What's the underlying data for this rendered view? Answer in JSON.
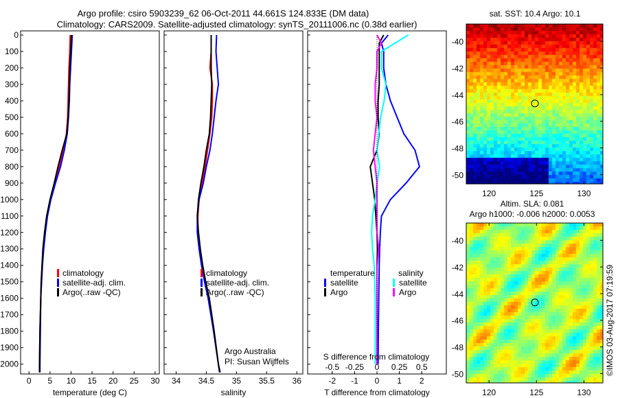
{
  "title_line1": "Argo profile: csiro 5903239_62 06-Oct-2011 44.661S 124.833E (DM data)",
  "title_line2": "Climatology: CARS2009. Satellite-adjusted climatology: synTS_20111006.nc (0.38d earlier)",
  "credit": "Argo Australia",
  "pi": "PI: Susan Wijffels",
  "imos_stamp": "©IMOS 03-Aug-2017 07:19:59",
  "colors": {
    "climatology": "#ff0000",
    "satellite": "#0000ff",
    "argo": "#000000",
    "sal_satellite": "#00ffff",
    "sal_argo": "#ff00ff"
  },
  "chart_data": [
    {
      "type": "line",
      "xlabel": "temperature (deg C)",
      "xlim": [
        -2,
        31
      ],
      "ylim": [
        0,
        2060
      ],
      "yticks": [
        0,
        100,
        200,
        300,
        400,
        500,
        600,
        700,
        800,
        900,
        1000,
        1100,
        1200,
        1300,
        1400,
        1500,
        1600,
        1700,
        1800,
        1900,
        2000
      ],
      "xticks": [
        0,
        5,
        10,
        15,
        20,
        25,
        30
      ],
      "legend": [
        "climatology",
        "satellite-adj. clim.",
        "Argo(..raw -QC)"
      ],
      "depth": [
        0,
        100,
        200,
        300,
        400,
        500,
        600,
        700,
        800,
        900,
        1000,
        1100,
        1200,
        1300,
        1400,
        1500,
        1600,
        1800,
        2000,
        2050
      ],
      "series": [
        {
          "name": "climatology",
          "values": [
            9.8,
            9.7,
            9.5,
            9.4,
            9.3,
            9.2,
            8.9,
            8.2,
            7.2,
            6.1,
            5.1,
            4.3,
            3.8,
            3.4,
            3.1,
            2.9,
            2.8,
            2.6,
            2.5,
            2.5
          ]
        },
        {
          "name": "satellite-adj. clim.",
          "values": [
            10.3,
            10.1,
            9.9,
            9.7,
            9.6,
            9.4,
            9.1,
            8.4,
            7.5,
            6.3,
            5.2,
            4.4,
            3.9,
            3.5,
            3.2,
            3.0,
            2.8,
            2.7,
            2.6,
            2.6
          ]
        },
        {
          "name": "Argo(..raw -QC)",
          "values": [
            10.1,
            9.9,
            9.7,
            9.6,
            9.5,
            9.3,
            9.0,
            7.9,
            6.9,
            6.0,
            5.0,
            4.2,
            3.7,
            3.3,
            3.1,
            2.9,
            2.8,
            2.6,
            2.5,
            2.5
          ]
        }
      ]
    },
    {
      "type": "line",
      "xlabel": "salinity",
      "xlim": [
        33.8,
        36.1
      ],
      "ylim": [
        0,
        2060
      ],
      "xticks": [
        34,
        34.5,
        35,
        35.5,
        36
      ],
      "legend": [
        "climatology",
        "satellite-adj. clim.",
        "Argo(..raw -QC)"
      ],
      "depth": [
        0,
        100,
        200,
        300,
        400,
        500,
        600,
        700,
        800,
        900,
        1000,
        1100,
        1200,
        1300,
        1400,
        1500,
        1600,
        1800,
        2000,
        2050
      ],
      "series": [
        {
          "name": "climatology",
          "values": [
            34.58,
            34.58,
            34.56,
            34.6,
            34.6,
            34.59,
            34.56,
            34.52,
            34.48,
            34.43,
            34.38,
            34.36,
            34.36,
            34.39,
            34.43,
            34.48,
            34.54,
            34.62,
            34.7,
            34.72
          ]
        },
        {
          "name": "satellite-adj. clim.",
          "values": [
            34.67,
            34.66,
            34.68,
            34.7,
            34.66,
            34.63,
            34.6,
            34.56,
            34.5,
            34.45,
            34.38,
            34.35,
            34.35,
            34.38,
            34.42,
            34.47,
            34.53,
            34.62,
            34.7,
            34.73
          ]
        },
        {
          "name": "Argo(..raw -QC)",
          "values": [
            34.58,
            34.58,
            34.58,
            34.59,
            34.58,
            34.57,
            34.55,
            34.5,
            34.46,
            34.41,
            34.37,
            34.35,
            34.37,
            34.4,
            34.44,
            34.49,
            34.55,
            34.63,
            34.7,
            34.72
          ]
        }
      ]
    },
    {
      "type": "line",
      "xlabel": "T difference from climatology",
      "xlabel2": "S difference from climatology",
      "xlim": [
        -3.1,
        3.1
      ],
      "xticks": [
        -2,
        -1,
        0,
        1,
        2
      ],
      "xticks2": [
        -0.5,
        -0.25,
        0,
        0.25,
        0.5
      ],
      "ylim": [
        0,
        2060
      ],
      "legend_t": {
        "header": "temperature",
        "items": [
          "satellite",
          "Argo"
        ]
      },
      "legend_s": {
        "header": "salinity",
        "items": [
          "satellite",
          "Argo"
        ]
      },
      "depth": [
        0,
        50,
        100,
        200,
        300,
        400,
        500,
        600,
        700,
        800,
        900,
        1000,
        1100,
        1200,
        1300,
        1400,
        1600,
        1800,
        2000
      ],
      "series": [
        {
          "name": "T satellite",
          "values": [
            0.5,
            0.2,
            0.3,
            0.3,
            0.4,
            0.6,
            0.9,
            1.2,
            1.7,
            1.9,
            1.3,
            0.6,
            0.2,
            0.15,
            0.12,
            0.1,
            0.08,
            0.06,
            0.05
          ]
        },
        {
          "name": "T Argo",
          "values": [
            0.3,
            0.1,
            0.1,
            0.1,
            0.1,
            0.05,
            0.05,
            0.1,
            0.0,
            -0.3,
            -0.2,
            -0.1,
            -0.05,
            0.0,
            0.02,
            0.0,
            0.0,
            0.0,
            0.0
          ]
        },
        {
          "name": "S satellite",
          "values": [
            0.35,
            0.2,
            0.05,
            0.05,
            0.1,
            0.08,
            0.04,
            0.02,
            0.0,
            0.03,
            0.0,
            -0.02,
            -0.05,
            -0.06,
            -0.05,
            -0.03,
            -0.02,
            -0.02,
            -0.02
          ]
        },
        {
          "name": "S Argo",
          "values": [
            0.0,
            0.05,
            0.0,
            0.0,
            -0.02,
            -0.02,
            0.0,
            -0.02,
            -0.04,
            -0.02,
            0.0,
            0.0,
            0.0,
            0.0,
            0.02,
            0.0,
            0.0,
            0.0,
            0.0
          ]
        }
      ]
    },
    {
      "type": "heatmap",
      "title": "sat. SST: 10.4 Argo: 10.1",
      "xticks": [
        120,
        125,
        130
      ],
      "yticks": [
        -40,
        -42,
        -44,
        -46,
        -48,
        -50
      ],
      "xlim": [
        117.6,
        132
      ],
      "ylim": [
        -50.7,
        -38.7
      ],
      "marker": [
        124.833,
        -44.661
      ]
    },
    {
      "type": "heatmap",
      "title1": "Altim. SLA: 0.081",
      "title2": "Argo h1000: -0.006 h2000: 0.0053",
      "xticks": [
        120,
        125,
        130
      ],
      "yticks": [
        -40,
        -42,
        -44,
        -46,
        -48,
        -50
      ],
      "xlim": [
        117.6,
        132
      ],
      "ylim": [
        -50.7,
        -38.7
      ],
      "marker": [
        124.833,
        -44.661
      ]
    }
  ]
}
